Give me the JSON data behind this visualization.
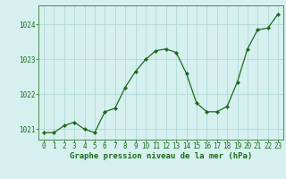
{
  "x": [
    0,
    1,
    2,
    3,
    4,
    5,
    6,
    7,
    8,
    9,
    10,
    11,
    12,
    13,
    14,
    15,
    16,
    17,
    18,
    19,
    20,
    21,
    22,
    23
  ],
  "y": [
    1020.9,
    1020.9,
    1021.1,
    1021.2,
    1021.0,
    1020.9,
    1021.5,
    1021.6,
    1022.2,
    1022.65,
    1023.0,
    1023.25,
    1023.3,
    1023.2,
    1022.6,
    1021.75,
    1021.5,
    1021.5,
    1021.65,
    1022.35,
    1023.3,
    1023.85,
    1023.9,
    1024.3
  ],
  "line_color": "#1a6b1a",
  "marker_color": "#1a6b1a",
  "bg_color": "#d6f0ef",
  "grid_color": "#b0d8d5",
  "xlabel": "Graphe pression niveau de la mer (hPa)",
  "xlabel_color": "#1a6b1a",
  "tick_color": "#1a6b1a",
  "ylim": [
    1020.7,
    1024.55
  ],
  "yticks": [
    1021,
    1022,
    1023,
    1024
  ],
  "xticks": [
    0,
    1,
    2,
    3,
    4,
    5,
    6,
    7,
    8,
    9,
    10,
    11,
    12,
    13,
    14,
    15,
    16,
    17,
    18,
    19,
    20,
    21,
    22,
    23
  ],
  "spine_color": "#4a8a4a",
  "xlabel_fontsize": 6.5,
  "tick_fontsize": 5.5
}
